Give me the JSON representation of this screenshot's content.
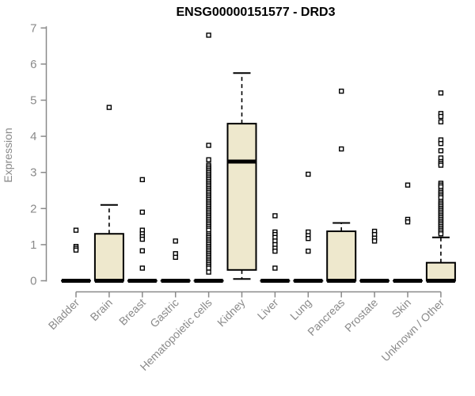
{
  "figure": {
    "title": "ENSG00000151577 - DRD3"
  },
  "colors": {
    "background": "#ffffff",
    "axis_gray": "#8a8a8a",
    "box_fill": "#EEE8CD",
    "box_stroke": "#000000",
    "title_color": "#000000"
  },
  "chart_data": {
    "type": "boxplot",
    "title": "ENSG00000151577 - DRD3",
    "xlabel": "",
    "ylabel": "Expression",
    "ylim": [
      0,
      7
    ],
    "yticks": [
      0,
      1,
      2,
      3,
      4,
      5,
      6,
      7
    ],
    "grid": false,
    "legend": "none",
    "box_fill": "#EEE8CD",
    "categories": [
      "Bladder",
      "Brain",
      "Breast",
      "Gastric",
      "Hematopoietic cells",
      "Kidney",
      "Liver",
      "Lung",
      "Pancreas",
      "Prostate",
      "Skin",
      "Unknown / Other"
    ],
    "series": [
      {
        "label": "Bladder",
        "q1": 0,
        "median": 0,
        "q3": 0,
        "whisker_low": 0,
        "whisker_high": 0,
        "outliers": [
          1.4,
          0.95,
          0.9,
          0.85
        ]
      },
      {
        "label": "Brain",
        "q1": 0,
        "median": 0,
        "q3": 1.3,
        "whisker_low": 0,
        "whisker_high": 2.1,
        "outliers": [
          4.8
        ]
      },
      {
        "label": "Breast",
        "q1": 0,
        "median": 0,
        "q3": 0,
        "whisker_low": 0,
        "whisker_high": 0,
        "outliers": [
          2.8,
          1.9,
          1.4,
          1.3,
          1.22,
          1.15,
          0.83,
          0.35
        ]
      },
      {
        "label": "Gastric",
        "q1": 0,
        "median": 0,
        "q3": 0,
        "whisker_low": 0,
        "whisker_high": 0,
        "outliers": [
          1.1,
          0.75,
          0.65
        ]
      },
      {
        "label": "Hematopoietic cells",
        "q1": 0,
        "median": 0,
        "q3": 0,
        "whisker_low": 0,
        "whisker_high": 0,
        "outliers": [
          6.8,
          3.75,
          3.35,
          3.2,
          3.15,
          3.1,
          3.05,
          3.0,
          2.95,
          2.9,
          2.85,
          2.8,
          2.75,
          2.7,
          2.65,
          2.6,
          2.55,
          2.5,
          2.45,
          2.4,
          2.35,
          2.3,
          2.25,
          2.2,
          2.15,
          2.1,
          2.05,
          2.0,
          1.95,
          1.9,
          1.85,
          1.8,
          1.75,
          1.7,
          1.65,
          1.6,
          1.55,
          1.5,
          1.45,
          1.4,
          1.3,
          1.25,
          1.2,
          1.15,
          1.1,
          1.05,
          1.0,
          0.95,
          0.9,
          0.85,
          0.8,
          0.75,
          0.7,
          0.65,
          0.6,
          0.55,
          0.5,
          0.45,
          0.4,
          0.35,
          0.24
        ]
      },
      {
        "label": "Kidney",
        "q1": 0.3,
        "median": 3.3,
        "q3": 4.35,
        "whisker_low": 0.05,
        "whisker_high": 5.75,
        "outliers": []
      },
      {
        "label": "Liver",
        "q1": 0,
        "median": 0,
        "q3": 0,
        "whisker_low": 0,
        "whisker_high": 0,
        "outliers": [
          1.8,
          1.35,
          1.28,
          1.2,
          1.1,
          1.0,
          0.9,
          0.82,
          0.35
        ]
      },
      {
        "label": "Lung",
        "q1": 0,
        "median": 0,
        "q3": 0,
        "whisker_low": 0,
        "whisker_high": 0,
        "outliers": [
          2.95,
          1.35,
          1.25,
          1.17,
          0.82
        ]
      },
      {
        "label": "Pancreas",
        "q1": 0,
        "median": 0,
        "q3": 1.37,
        "whisker_low": 0,
        "whisker_high": 1.6,
        "outliers": [
          5.25,
          3.65
        ]
      },
      {
        "label": "Prostate",
        "q1": 0,
        "median": 0,
        "q3": 0,
        "whisker_low": 0,
        "whisker_high": 0,
        "outliers": [
          1.37,
          1.28,
          1.18,
          1.1
        ]
      },
      {
        "label": "Skin",
        "q1": 0,
        "median": 0,
        "q3": 0,
        "whisker_low": 0,
        "whisker_high": 0,
        "outliers": [
          2.65,
          1.7,
          1.63
        ]
      },
      {
        "label": "Unknown / Other",
        "q1": 0,
        "median": 0,
        "q3": 0.5,
        "whisker_low": 0,
        "whisker_high": 1.2,
        "outliers": [
          5.2,
          4.63,
          4.55,
          4.4,
          3.9,
          3.8,
          3.6,
          3.4,
          3.3,
          3.25,
          3.2,
          2.7,
          2.65,
          2.6,
          2.5,
          2.45,
          2.4,
          2.35,
          2.3,
          2.2,
          2.15,
          2.1,
          2.05,
          2.0,
          1.95,
          1.9,
          1.85,
          1.8,
          1.75,
          1.7,
          1.65,
          1.6,
          1.55,
          1.5,
          1.45,
          1.4,
          1.35,
          1.3
        ]
      }
    ]
  }
}
